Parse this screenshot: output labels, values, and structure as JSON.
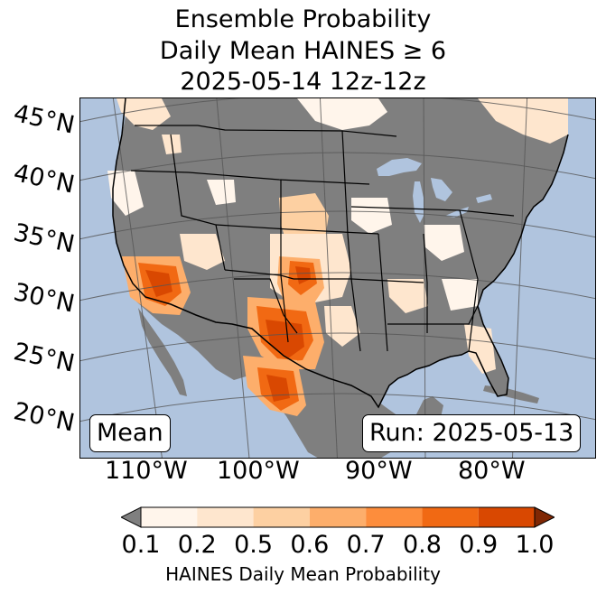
{
  "title": {
    "line1": "Ensemble Probability",
    "line2": "Daily Mean HAINES ≥ 6",
    "line3": "2025-05-14 12z-12z"
  },
  "map": {
    "lat_labels": [
      "45°N",
      "40°N",
      "35°N",
      "30°N",
      "25°N",
      "20°N"
    ],
    "lon_labels": [
      "110°W",
      "100°W",
      "90°W",
      "80°W"
    ],
    "stat_box": "Mean",
    "run_box": "Run: 2025-05-13",
    "colors": {
      "ocean": "#b0c4de",
      "land": "#7f7f7f",
      "lake": "#b0c4de",
      "borders": "#000000",
      "graticule": "#555555"
    }
  },
  "colorbar": {
    "label": "HAINES Daily Mean Probability",
    "ticks": [
      "0.1",
      "0.2",
      "0.5",
      "0.6",
      "0.7",
      "0.8",
      "0.9",
      "1.0"
    ],
    "colors": [
      "#fff5eb",
      "#fee6ce",
      "#fdd0a2",
      "#fdae6b",
      "#fd8d3c",
      "#f16913",
      "#d94801",
      "#a63603"
    ],
    "under_color": "#7f7f7f",
    "over_color": "#7f2704"
  }
}
